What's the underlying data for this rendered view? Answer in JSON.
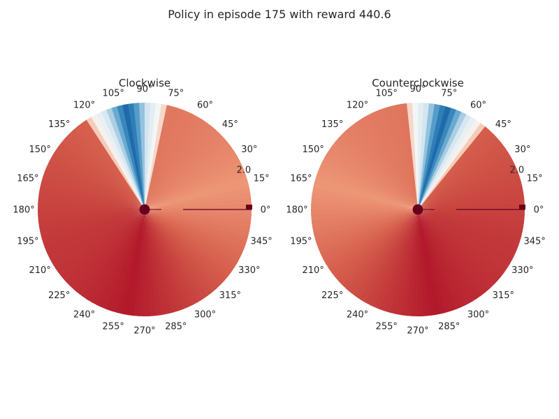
{
  "figure": {
    "title": "Policy in episode 175 with reward 440.6"
  },
  "chart_data": [
    {
      "type": "heatmap",
      "projection": "polar",
      "title": "Clockwise",
      "radial_tick_labels": [
        "2.0"
      ],
      "angle_tick_labels": [
        "0°",
        "15°",
        "30°",
        "45°",
        "60°",
        "75°",
        "90°",
        "105°",
        "120°",
        "135°",
        "150°",
        "165°",
        "180°",
        "195°",
        "210°",
        "225°",
        "240°",
        "255°",
        "270°",
        "285°",
        "300°",
        "315°",
        "330°",
        "345°"
      ],
      "colormap": "RdBu",
      "blue_wedge_center_deg": 100,
      "blue_wedge_half_width_deg": 22,
      "lightest_region_deg": 15,
      "darkest_region_deg": 260,
      "grid": false
    },
    {
      "type": "heatmap",
      "projection": "polar",
      "title": "Counterclockwise",
      "radial_tick_labels": [
        "2.0"
      ],
      "angle_tick_labels": [
        "0°",
        "15°",
        "30°",
        "45°",
        "60°",
        "75°",
        "90°",
        "105°",
        "120°",
        "135°",
        "150°",
        "165°",
        "180°",
        "195°",
        "210°",
        "225°",
        "240°",
        "255°",
        "270°",
        "285°",
        "300°",
        "315°",
        "330°",
        "345°"
      ],
      "colormap": "RdBu",
      "blue_wedge_center_deg": 74,
      "blue_wedge_half_width_deg": 22,
      "lightest_region_deg": 165,
      "darkest_region_deg": 280,
      "grid": false
    }
  ],
  "colors": {
    "deep_blue": "#08519c",
    "mid_blue": "#4393c3",
    "light_blue": "#d1e5f0",
    "white": "#f7f7f7",
    "light_red": "#f4a582",
    "mid_red": "#d6604d",
    "deep_red": "#b2182b",
    "marker": "#67001f"
  }
}
